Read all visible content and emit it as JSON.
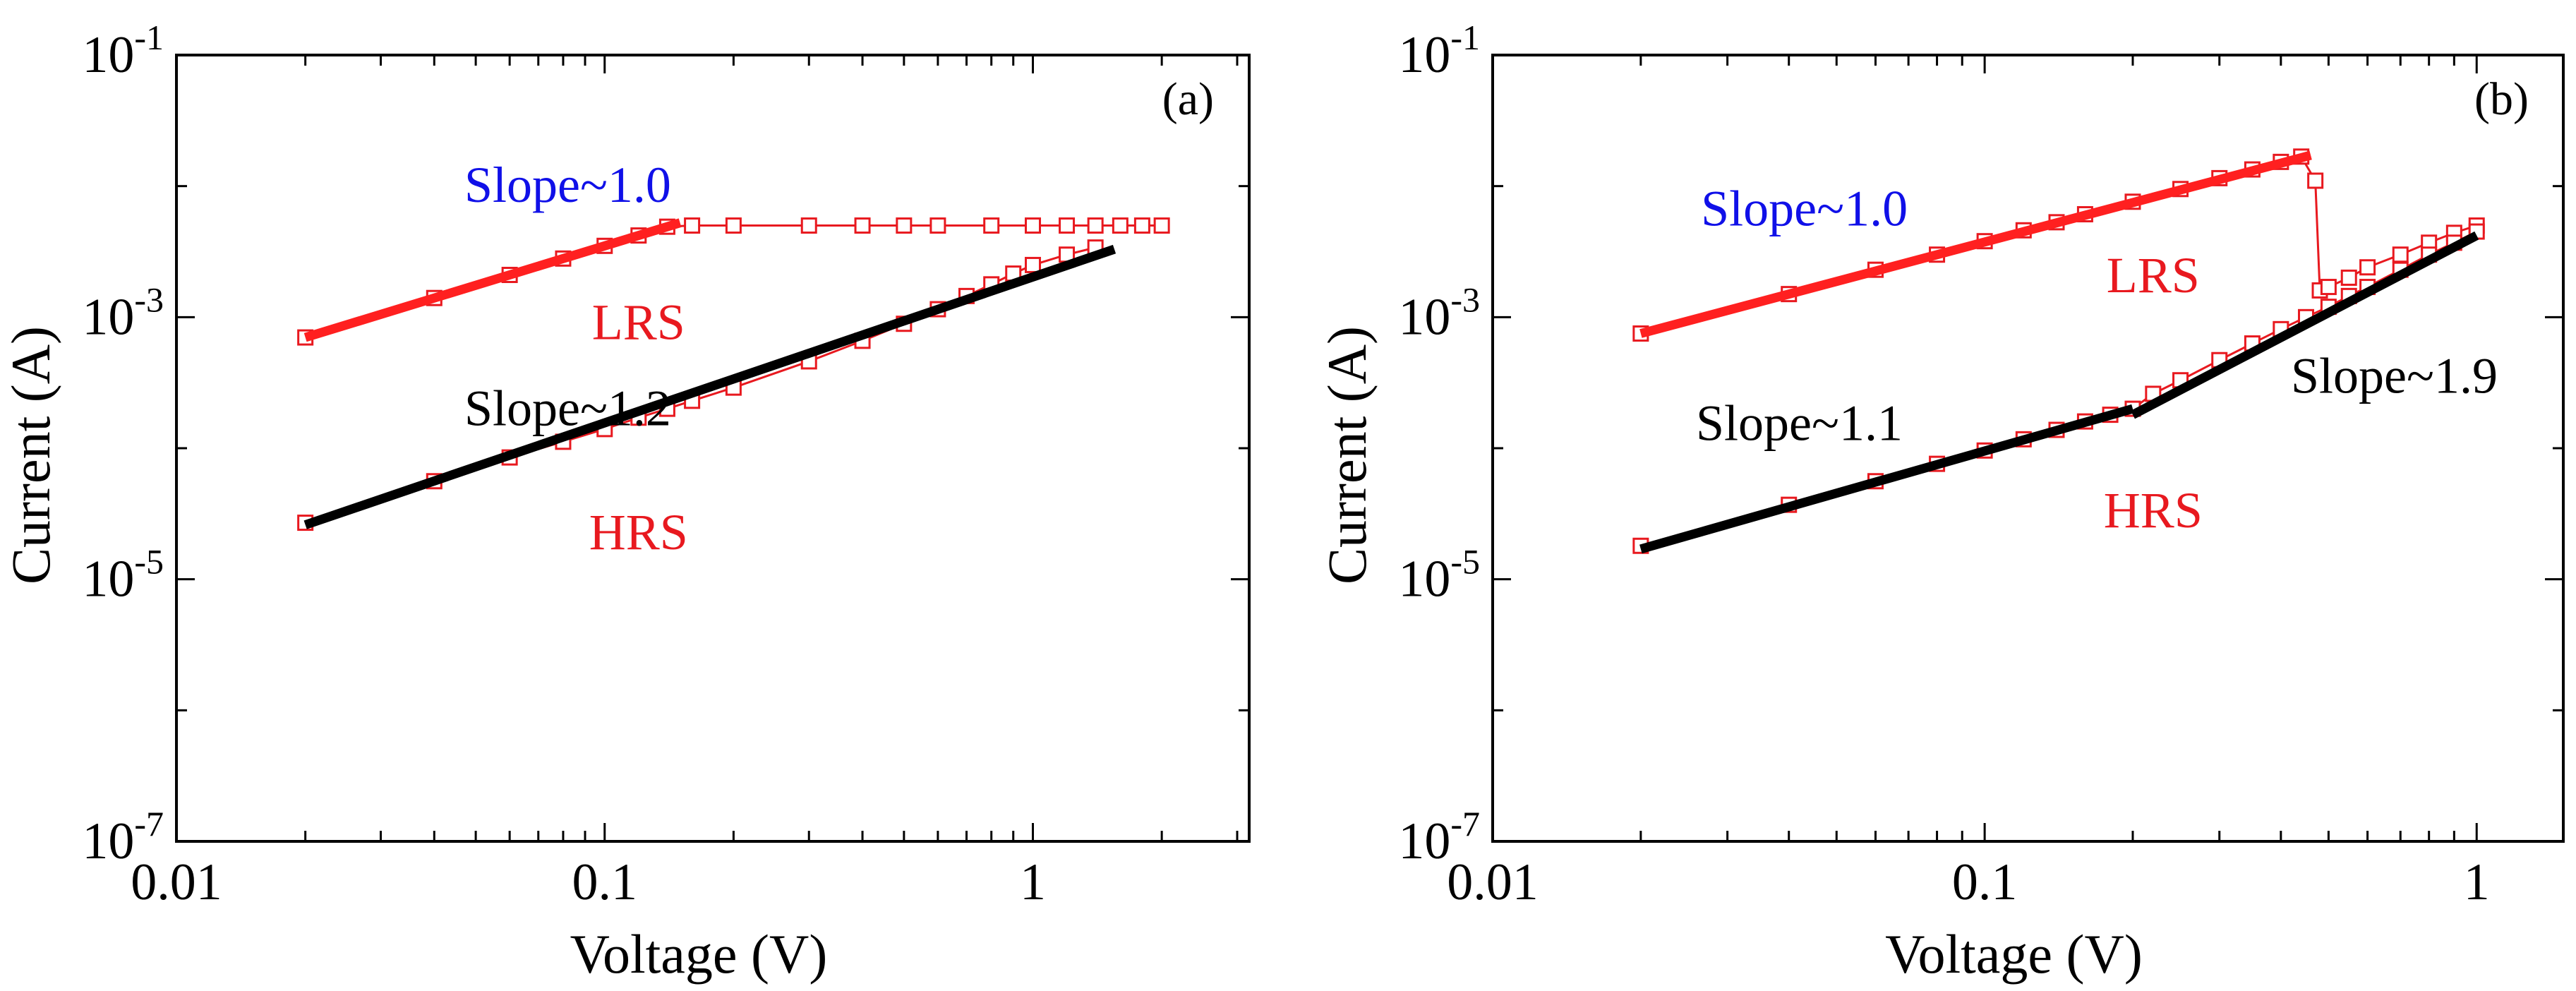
{
  "colors": {
    "marker": "#e8191f",
    "fit_red": "#ff2020",
    "fit_black": "#000000",
    "text_blue": "#1010e8",
    "text_red": "#e8191f",
    "text_black": "#000000"
  },
  "chart_data": [
    {
      "panel": "(a)",
      "type": "scatter",
      "scale": "log-log",
      "xlabel": "Voltage (V)",
      "ylabel": "Current (A)",
      "xlim": [
        0.01,
        3.2
      ],
      "ylim": [
        1e-07,
        0.1
      ],
      "xticks": [
        0.01,
        0.1,
        1
      ],
      "xtick_labels": [
        "0.01",
        "0.1",
        "1"
      ],
      "yticks": [
        1e-07,
        1e-05,
        0.001,
        0.1
      ],
      "ytick_labels": [
        {
          "base": "10",
          "exp": "-7"
        },
        {
          "base": "10",
          "exp": "-5"
        },
        {
          "base": "10",
          "exp": "-3"
        },
        {
          "base": "10",
          "exp": "-1"
        }
      ],
      "series": [
        {
          "name": "LRS",
          "marker": "open-square",
          "x": [
            0.02,
            0.04,
            0.06,
            0.08,
            0.1,
            0.12,
            0.14,
            0.16,
            0.2,
            0.3,
            0.4,
            0.5,
            0.6,
            0.8,
            1.0,
            1.2,
            1.4,
            1.6,
            1.8,
            2.0
          ],
          "y": [
            0.0007,
            0.0014,
            0.0021,
            0.0028,
            0.0035,
            0.0042,
            0.0049,
            0.005,
            0.005,
            0.005,
            0.005,
            0.005,
            0.005,
            0.005,
            0.005,
            0.005,
            0.005,
            0.005,
            0.005,
            0.005
          ]
        },
        {
          "name": "HRS",
          "marker": "open-square",
          "x": [
            0.02,
            0.04,
            0.06,
            0.08,
            0.1,
            0.12,
            0.14,
            0.16,
            0.2,
            0.3,
            0.4,
            0.5,
            0.6,
            0.7,
            0.8,
            0.9,
            1.0,
            1.2,
            1.4
          ],
          "y": [
            2.7e-05,
            5.6e-05,
            8.5e-05,
            0.000112,
            0.00014,
            0.000171,
            0.0002,
            0.00023,
            0.00029,
            0.00046,
            0.00066,
            0.00089,
            0.00115,
            0.00145,
            0.00178,
            0.00215,
            0.0025,
            0.003,
            0.0034
          ]
        }
      ],
      "fits": [
        {
          "name": "LRS fit",
          "color": "red",
          "x": [
            0.02,
            0.15
          ],
          "y": [
            0.0007,
            0.00525
          ]
        },
        {
          "name": "HRS fit",
          "color": "black",
          "x": [
            0.02,
            1.55
          ],
          "y": [
            2.6e-05,
            0.0033
          ]
        }
      ],
      "annotations": [
        {
          "text": "Slope~1.0",
          "color": "blue",
          "x": 0.082,
          "y": 0.0076
        },
        {
          "text": "LRS",
          "color": "red",
          "x": 0.12,
          "y": 0.00068
        },
        {
          "text": "Slope~1.2",
          "color": "black",
          "x": 0.082,
          "y": 0.00015
        },
        {
          "text": "HRS",
          "color": "red",
          "x": 0.12,
          "y": 1.7e-05
        }
      ]
    },
    {
      "panel": "(b)",
      "type": "scatter",
      "scale": "log-log",
      "xlabel": "Voltage (V)",
      "ylabel": "Current (A)",
      "xlim": [
        0.01,
        1.5
      ],
      "ylim": [
        1e-07,
        0.1
      ],
      "xticks": [
        0.01,
        0.1,
        1
      ],
      "xtick_labels": [
        "0.01",
        "0.1",
        "1"
      ],
      "yticks": [
        1e-07,
        1e-05,
        0.001,
        0.1
      ],
      "ytick_labels": [
        {
          "base": "10",
          "exp": "-7"
        },
        {
          "base": "10",
          "exp": "-5"
        },
        {
          "base": "10",
          "exp": "-3"
        },
        {
          "base": "10",
          "exp": "-1"
        }
      ],
      "series": [
        {
          "name": "LRS",
          "marker": "open-square",
          "x": [
            0.02,
            0.04,
            0.06,
            0.08,
            0.1,
            0.12,
            0.14,
            0.16,
            0.2,
            0.25,
            0.3,
            0.35,
            0.4,
            0.44,
            0.47,
            0.48,
            0.5,
            0.55,
            0.6,
            0.7,
            0.8,
            0.9,
            1.0
          ],
          "y": [
            0.00075,
            0.0015,
            0.0023,
            0.003,
            0.0038,
            0.0046,
            0.0053,
            0.0061,
            0.0076,
            0.0095,
            0.0115,
            0.0134,
            0.0153,
            0.0168,
            0.011,
            0.0016,
            0.0017,
            0.002,
            0.0024,
            0.003,
            0.0037,
            0.0044,
            0.005
          ]
        },
        {
          "name": "HRS",
          "marker": "open-square",
          "x": [
            0.02,
            0.04,
            0.06,
            0.08,
            0.1,
            0.12,
            0.14,
            0.16,
            0.18,
            0.2,
            0.22,
            0.25,
            0.3,
            0.35,
            0.4,
            0.45,
            0.5,
            0.55,
            0.6,
            0.7,
            0.8,
            0.9,
            1.0
          ],
          "y": [
            1.8e-05,
            3.7e-05,
            5.6e-05,
            7.6e-05,
            9.6e-05,
            0.000117,
            0.000138,
            0.00016,
            0.00018,
            0.0002,
            0.00026,
            0.00033,
            0.00047,
            0.00063,
            0.00081,
            0.001,
            0.0012,
            0.00145,
            0.0017,
            0.0023,
            0.003,
            0.0037,
            0.0045
          ]
        }
      ],
      "fits": [
        {
          "name": "LRS fit",
          "color": "red",
          "x": [
            0.02,
            0.46
          ],
          "y": [
            0.00075,
            0.0172
          ]
        },
        {
          "name": "HRS fit 1",
          "color": "black",
          "x": [
            0.02,
            0.2
          ],
          "y": [
            1.7e-05,
            0.0002
          ]
        },
        {
          "name": "HRS fit 2",
          "color": "black",
          "x": [
            0.2,
            1.0
          ],
          "y": [
            0.00018,
            0.0042
          ]
        }
      ],
      "annotations": [
        {
          "text": "Slope~1.0",
          "color": "blue",
          "x": 0.043,
          "y": 0.005
        },
        {
          "text": "LRS",
          "color": "red",
          "x": 0.22,
          "y": 0.00155
        },
        {
          "text": "Slope~1.1",
          "color": "black",
          "x": 0.042,
          "y": 0.000115
        },
        {
          "text": "Slope~1.9",
          "color": "black",
          "x": 0.68,
          "y": 0.000265
        },
        {
          "text": "HRS",
          "color": "red",
          "x": 0.22,
          "y": 2.5e-05
        }
      ]
    }
  ]
}
